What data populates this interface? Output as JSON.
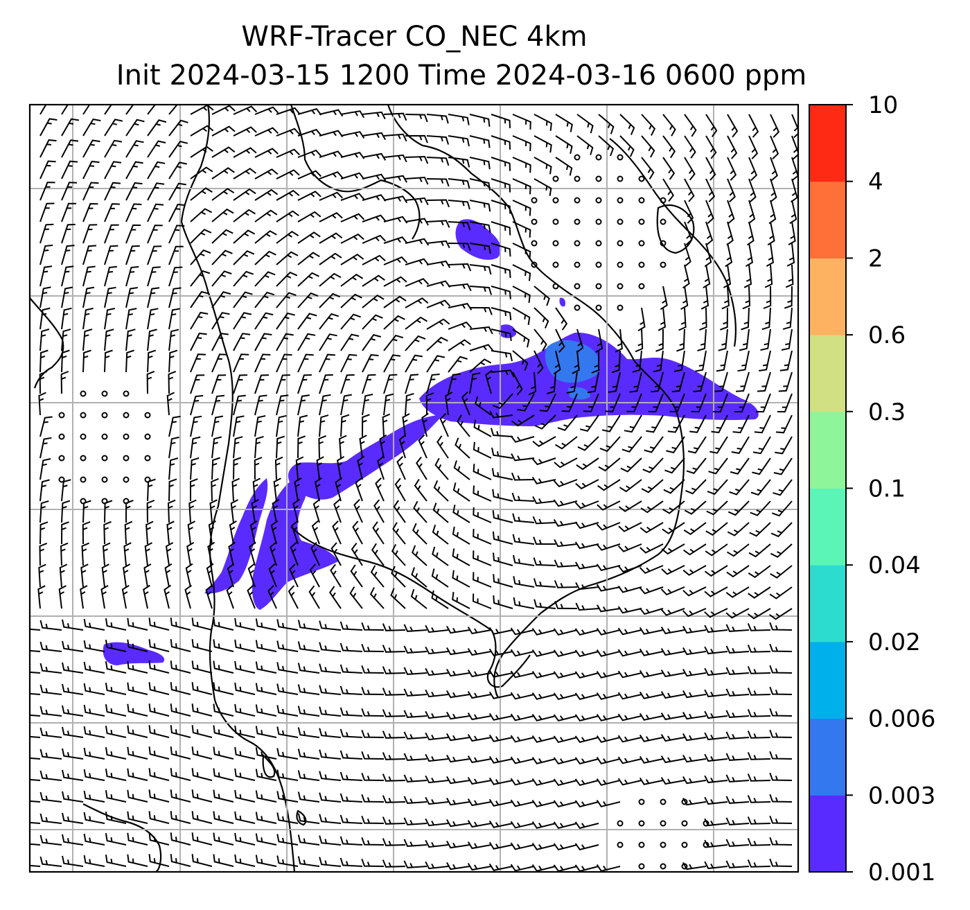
{
  "title": {
    "line1": "WRF-Tracer CO_NEC 4km",
    "line2": "Init 2024-03-15 1200 Time 2024-03-16 0600 ppm"
  },
  "colorbar": {
    "levels": [
      "0.001",
      "0.003",
      "0.006",
      "0.02",
      "0.04",
      "0.1",
      "0.3",
      "0.6",
      "2",
      "4",
      "10"
    ],
    "colors": [
      "#5a2bff",
      "#3478f0",
      "#00b0ea",
      "#2cdccf",
      "#5bf5b8",
      "#8ff59a",
      "#d0e082",
      "#fcb260",
      "#ff7038",
      "#ff2a14"
    ]
  },
  "map": {
    "background": "#ffffff",
    "gridline_color": "#b0b0b0",
    "coastline_color": "#000000",
    "wind_barbs": "black"
  }
}
